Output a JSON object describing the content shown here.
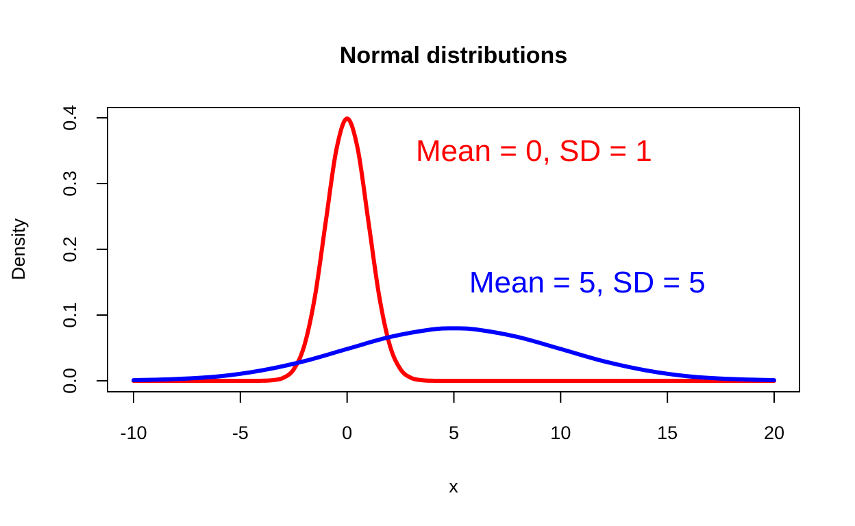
{
  "chart_data": {
    "type": "line",
    "title": "Normal distributions",
    "xlabel": "x",
    "ylabel": "Density",
    "xlim": [
      -10,
      20
    ],
    "ylim": [
      0,
      0.4
    ],
    "x_ticks": [
      "-10",
      "-5",
      "0",
      "5",
      "10",
      "15",
      "20"
    ],
    "y_ticks": [
      "0.0",
      "0.1",
      "0.2",
      "0.3",
      "0.4"
    ],
    "grid": false,
    "series": [
      {
        "color": "#ff0000",
        "annotation": "Mean = 0, SD = 1",
        "x": [
          -10,
          -5,
          -4,
          -3.5,
          -3,
          -2.5,
          -2,
          -1.5,
          -1,
          -0.5,
          0,
          0.5,
          1,
          1.5,
          2,
          2.5,
          3,
          3.5,
          4,
          5,
          10,
          15,
          20
        ],
        "y": [
          0,
          0,
          0.0001,
          0.0009,
          0.0044,
          0.0175,
          0.054,
          0.1295,
          0.242,
          0.3521,
          0.3989,
          0.3521,
          0.242,
          0.1295,
          0.054,
          0.0175,
          0.0044,
          0.0009,
          0.0001,
          0,
          0,
          0,
          0
        ]
      },
      {
        "color": "#0000ff",
        "annotation": "Mean = 5, SD = 5",
        "x": [
          -10,
          -8,
          -6,
          -4,
          -2,
          0,
          2,
          4,
          5,
          6,
          8,
          10,
          12,
          14,
          16,
          18,
          20
        ],
        "y": [
          0.0009,
          0.0027,
          0.0068,
          0.0158,
          0.0299,
          0.0484,
          0.0666,
          0.0782,
          0.0798,
          0.0782,
          0.0666,
          0.0484,
          0.0299,
          0.0158,
          0.0068,
          0.0027,
          0.0009
        ]
      }
    ],
    "annotations": [
      {
        "text": "Mean = 0, SD = 1",
        "x": 8.75,
        "y": 0.35,
        "color": "#ff0000"
      },
      {
        "text": "Mean = 5, SD = 5",
        "x": 11.25,
        "y": 0.15,
        "color": "#0000ff"
      }
    ]
  }
}
